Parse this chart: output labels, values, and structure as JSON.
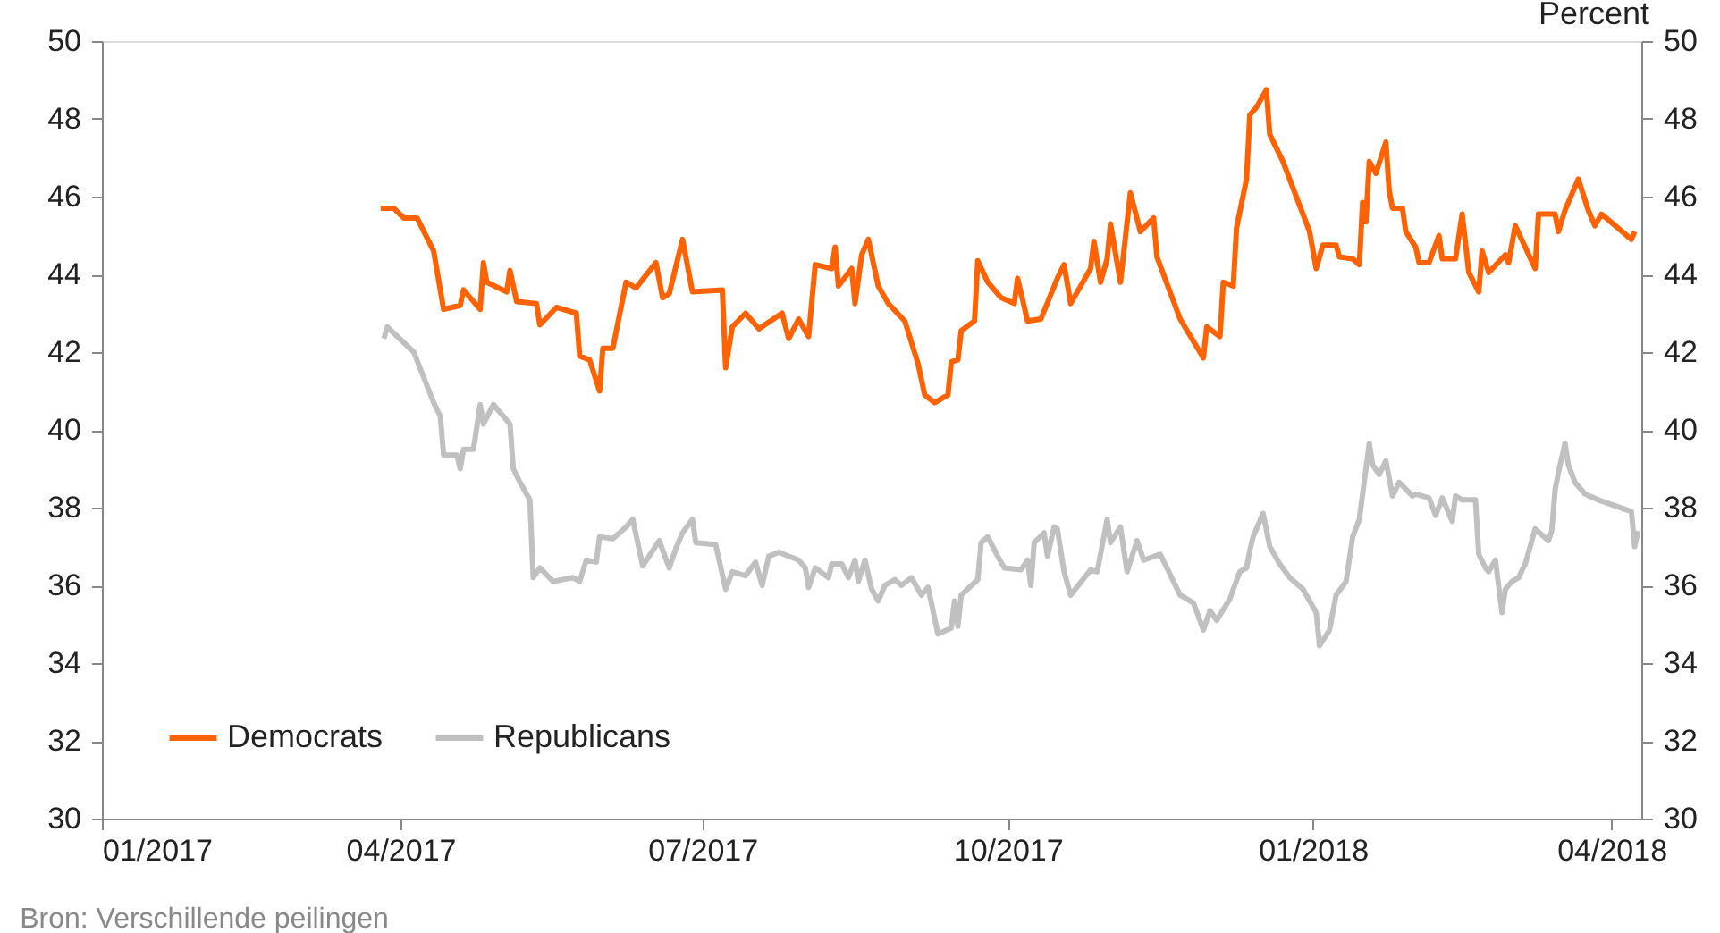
{
  "chart_data": {
    "type": "line",
    "y2label": "Percent",
    "annotations": [
      "Bron: Verschillende peilingen"
    ],
    "xlim": [
      "2017-01-01",
      "2018-04-10"
    ],
    "xticks": [
      {
        "value": "2017-01-01",
        "label": "01/2017"
      },
      {
        "value": "2017-04-01",
        "label": "04/2017"
      },
      {
        "value": "2017-07-01",
        "label": "07/2017"
      },
      {
        "value": "2017-10-01",
        "label": "10/2017"
      },
      {
        "value": "2018-01-01",
        "label": "01/2018"
      },
      {
        "value": "2018-04-01",
        "label": "04/2018"
      }
    ],
    "ylim": [
      30,
      50
    ],
    "yticks": [
      30,
      32,
      34,
      36,
      38,
      40,
      42,
      44,
      46,
      48,
      50
    ],
    "y2lim": [
      30,
      50
    ],
    "y2ticks": [
      30,
      32,
      34,
      36,
      38,
      40,
      42,
      44,
      46,
      48,
      50
    ],
    "grid": false,
    "legend": "bottom left",
    "marker": "none",
    "line_style": "solid",
    "series": [
      {
        "name": "Democrats",
        "color": "#ff6200",
        "x": [
          "2017-03-26",
          "2017-03-30",
          "2017-04-02",
          "2017-04-06",
          "2017-04-11",
          "2017-04-14",
          "2017-04-19",
          "2017-04-20",
          "2017-04-25",
          "2017-04-26",
          "2017-04-27",
          "2017-05-03",
          "2017-05-04",
          "2017-05-06",
          "2017-05-12",
          "2017-05-13",
          "2017-05-18",
          "2017-05-24",
          "2017-05-25",
          "2017-05-28",
          "2017-05-31",
          "2017-06-01",
          "2017-06-04",
          "2017-06-08",
          "2017-06-11",
          "2017-06-17",
          "2017-06-19",
          "2017-06-21",
          "2017-06-25",
          "2017-06-28",
          "2017-07-07",
          "2017-07-08",
          "2017-07-10",
          "2017-07-14",
          "2017-07-18",
          "2017-07-25",
          "2017-07-27",
          "2017-07-30",
          "2017-08-02",
          "2017-08-04",
          "2017-08-09",
          "2017-08-10",
          "2017-08-11",
          "2017-08-15",
          "2017-08-16",
          "2017-08-18",
          "2017-08-20",
          "2017-08-23",
          "2017-08-26",
          "2017-08-31",
          "2017-09-04",
          "2017-09-06",
          "2017-09-09",
          "2017-09-13",
          "2017-09-14",
          "2017-09-16",
          "2017-09-17",
          "2017-09-21",
          "2017-09-22",
          "2017-09-25",
          "2017-09-29",
          "2017-10-03",
          "2017-10-04",
          "2017-10-07",
          "2017-10-11",
          "2017-10-16",
          "2017-10-18",
          "2017-10-20",
          "2017-10-26",
          "2017-10-27",
          "2017-10-29",
          "2017-10-31",
          "2017-11-01",
          "2017-11-04",
          "2017-11-07",
          "2017-11-10",
          "2017-11-14",
          "2017-11-15",
          "2017-11-22",
          "2017-11-29",
          "2017-11-30",
          "2017-12-04",
          "2017-12-05",
          "2017-12-08",
          "2017-12-09",
          "2017-12-12",
          "2017-12-13",
          "2017-12-15",
          "2017-12-18",
          "2017-12-19",
          "2017-12-23",
          "2017-12-29",
          "2017-12-31",
          "2018-01-02",
          "2018-01-04",
          "2018-01-08",
          "2018-01-09",
          "2018-01-13",
          "2018-01-15",
          "2018-01-16",
          "2018-01-17",
          "2018-01-18",
          "2018-01-20",
          "2018-01-23",
          "2018-01-24",
          "2018-01-25",
          "2018-01-28",
          "2018-01-29",
          "2018-02-01",
          "2018-02-02",
          "2018-02-05",
          "2018-02-08",
          "2018-02-09",
          "2018-02-13",
          "2018-02-15",
          "2018-02-17",
          "2018-02-20",
          "2018-02-21",
          "2018-02-23",
          "2018-02-28",
          "2018-03-01",
          "2018-03-03",
          "2018-03-06",
          "2018-03-09",
          "2018-03-10",
          "2018-03-15",
          "2018-03-16",
          "2018-03-18",
          "2018-03-22",
          "2018-03-25",
          "2018-03-27",
          "2018-03-29",
          "2018-04-07",
          "2018-04-08"
        ],
        "values": [
          45.7,
          45.7,
          45.45,
          45.45,
          44.6,
          43.1,
          43.2,
          43.6,
          43.1,
          44.3,
          43.8,
          43.55,
          44.1,
          43.3,
          43.25,
          42.7,
          43.15,
          43.0,
          41.9,
          41.8,
          41.0,
          42.1,
          42.1,
          43.8,
          43.65,
          44.3,
          43.4,
          43.5,
          44.9,
          43.55,
          43.6,
          41.6,
          42.65,
          43.0,
          42.6,
          43.0,
          42.35,
          42.85,
          42.4,
          44.25,
          44.15,
          44.7,
          43.7,
          44.15,
          43.25,
          44.5,
          44.9,
          43.7,
          43.25,
          42.8,
          41.7,
          40.9,
          40.7,
          40.9,
          41.75,
          41.8,
          42.55,
          42.8,
          44.35,
          43.8,
          43.4,
          43.25,
          43.9,
          42.8,
          42.85,
          43.9,
          44.25,
          43.25,
          44.15,
          44.85,
          43.8,
          44.4,
          45.3,
          43.8,
          46.1,
          45.1,
          45.45,
          44.45,
          42.85,
          41.85,
          42.65,
          42.4,
          43.8,
          43.7,
          45.2,
          46.45,
          48.1,
          48.3,
          48.75,
          47.6,
          46.9,
          45.55,
          45.1,
          44.15,
          44.75,
          44.75,
          44.45,
          44.4,
          44.25,
          45.85,
          45.35,
          46.9,
          46.6,
          47.4,
          46.15,
          45.7,
          45.7,
          45.1,
          44.7,
          44.3,
          44.3,
          45.0,
          44.4,
          44.4,
          45.55,
          44.05,
          43.55,
          44.6,
          44.05,
          44.5,
          44.3,
          45.25,
          44.7,
          44.15,
          45.55,
          45.55,
          45.1,
          45.65,
          46.45,
          45.65,
          45.25,
          45.55,
          44.9,
          45.1
        ]
      },
      {
        "name": "Republicans",
        "color": "#c0c0c0",
        "x": [
          "2017-03-27",
          "2017-03-28",
          "2017-04-05",
          "2017-04-11",
          "2017-04-13",
          "2017-04-14",
          "2017-04-18",
          "2017-04-19",
          "2017-04-20",
          "2017-04-23",
          "2017-04-25",
          "2017-04-26",
          "2017-04-29",
          "2017-05-04",
          "2017-05-05",
          "2017-05-07",
          "2017-05-10",
          "2017-05-11",
          "2017-05-13",
          "2017-05-17",
          "2017-05-23",
          "2017-05-25",
          "2017-05-27",
          "2017-05-30",
          "2017-05-31",
          "2017-06-04",
          "2017-06-08",
          "2017-06-10",
          "2017-06-13",
          "2017-06-18",
          "2017-06-21",
          "2017-06-23",
          "2017-06-25",
          "2017-06-28",
          "2017-06-29",
          "2017-07-05",
          "2017-07-08",
          "2017-07-10",
          "2017-07-14",
          "2017-07-17",
          "2017-07-19",
          "2017-07-21",
          "2017-07-24",
          "2017-07-30",
          "2017-08-01",
          "2017-08-02",
          "2017-08-04",
          "2017-08-08",
          "2017-08-09",
          "2017-08-12",
          "2017-08-14",
          "2017-08-16",
          "2017-08-17",
          "2017-08-19",
          "2017-08-21",
          "2017-08-23",
          "2017-08-25",
          "2017-08-28",
          "2017-08-30",
          "2017-09-02",
          "2017-09-05",
          "2017-09-07",
          "2017-09-10",
          "2017-09-14",
          "2017-09-15",
          "2017-09-16",
          "2017-09-17",
          "2017-09-22",
          "2017-09-23",
          "2017-09-25",
          "2017-09-28",
          "2017-09-30",
          "2017-10-05",
          "2017-10-07",
          "2017-10-08",
          "2017-10-09",
          "2017-10-12",
          "2017-10-13",
          "2017-10-15",
          "2017-10-16",
          "2017-10-18",
          "2017-10-20",
          "2017-10-26",
          "2017-10-28",
          "2017-10-31",
          "2017-11-01",
          "2017-11-04",
          "2017-11-06",
          "2017-11-09",
          "2017-11-11",
          "2017-11-16",
          "2017-11-22",
          "2017-11-26",
          "2017-11-29",
          "2017-12-01",
          "2017-12-03",
          "2017-12-07",
          "2017-12-08",
          "2017-12-10",
          "2017-12-12",
          "2017-12-13",
          "2017-12-14",
          "2017-12-17",
          "2017-12-19",
          "2017-12-22",
          "2017-12-25",
          "2017-12-29",
          "2018-01-02",
          "2018-01-03",
          "2018-01-06",
          "2018-01-08",
          "2018-01-11",
          "2018-01-13",
          "2018-01-15",
          "2018-01-18",
          "2018-01-19",
          "2018-01-21",
          "2018-01-23",
          "2018-01-25",
          "2018-01-27",
          "2018-01-31",
          "2018-02-01",
          "2018-02-05",
          "2018-02-07",
          "2018-02-09",
          "2018-02-12",
          "2018-02-13",
          "2018-02-15",
          "2018-02-19",
          "2018-02-20",
          "2018-02-22",
          "2018-02-23",
          "2018-02-25",
          "2018-02-27",
          "2018-02-28",
          "2018-03-02",
          "2018-03-04",
          "2018-03-06",
          "2018-03-09",
          "2018-03-13",
          "2018-03-14",
          "2018-03-15",
          "2018-03-16",
          "2018-03-18",
          "2018-03-19",
          "2018-03-21",
          "2018-03-24",
          "2018-03-28",
          "2018-04-07",
          "2018-04-08",
          "2018-04-09"
        ],
        "values": [
          42.35,
          42.65,
          42.0,
          40.7,
          40.35,
          39.35,
          39.35,
          39.0,
          39.5,
          39.5,
          40.65,
          40.15,
          40.65,
          40.15,
          39.0,
          38.65,
          38.2,
          36.2,
          36.45,
          36.1,
          36.2,
          36.1,
          36.65,
          36.6,
          37.25,
          37.2,
          37.5,
          37.7,
          36.5,
          37.15,
          36.45,
          36.95,
          37.35,
          37.7,
          37.1,
          37.05,
          35.9,
          36.35,
          36.25,
          36.6,
          36.0,
          36.75,
          36.85,
          36.65,
          36.45,
          35.95,
          36.45,
          36.2,
          36.55,
          36.55,
          36.2,
          36.65,
          36.1,
          36.65,
          35.9,
          35.6,
          36.0,
          36.15,
          36.0,
          36.2,
          35.75,
          35.95,
          34.75,
          34.9,
          35.6,
          34.95,
          35.75,
          36.15,
          37.1,
          37.25,
          36.75,
          36.45,
          36.4,
          36.65,
          36.0,
          37.1,
          37.35,
          36.75,
          37.5,
          37.45,
          36.35,
          35.75,
          36.4,
          36.35,
          37.7,
          37.1,
          37.5,
          36.35,
          37.15,
          36.65,
          36.8,
          35.75,
          35.55,
          34.85,
          35.35,
          35.1,
          35.65,
          35.9,
          36.35,
          36.45,
          36.9,
          37.25,
          37.85,
          37.0,
          36.55,
          36.2,
          35.9,
          35.3,
          34.45,
          34.85,
          35.75,
          36.1,
          37.25,
          37.7,
          39.65,
          39.1,
          38.85,
          39.2,
          38.3,
          38.65,
          38.3,
          38.35,
          38.25,
          37.8,
          38.25,
          37.65,
          38.3,
          38.2,
          38.2,
          36.8,
          36.45,
          36.35,
          36.65,
          35.3,
          35.9,
          36.1,
          36.2,
          36.55,
          37.45,
          37.15,
          37.4,
          38.45,
          38.9,
          39.65,
          39.1,
          38.65,
          38.35,
          38.2,
          37.9,
          37.0,
          37.4
        ]
      }
    ]
  }
}
